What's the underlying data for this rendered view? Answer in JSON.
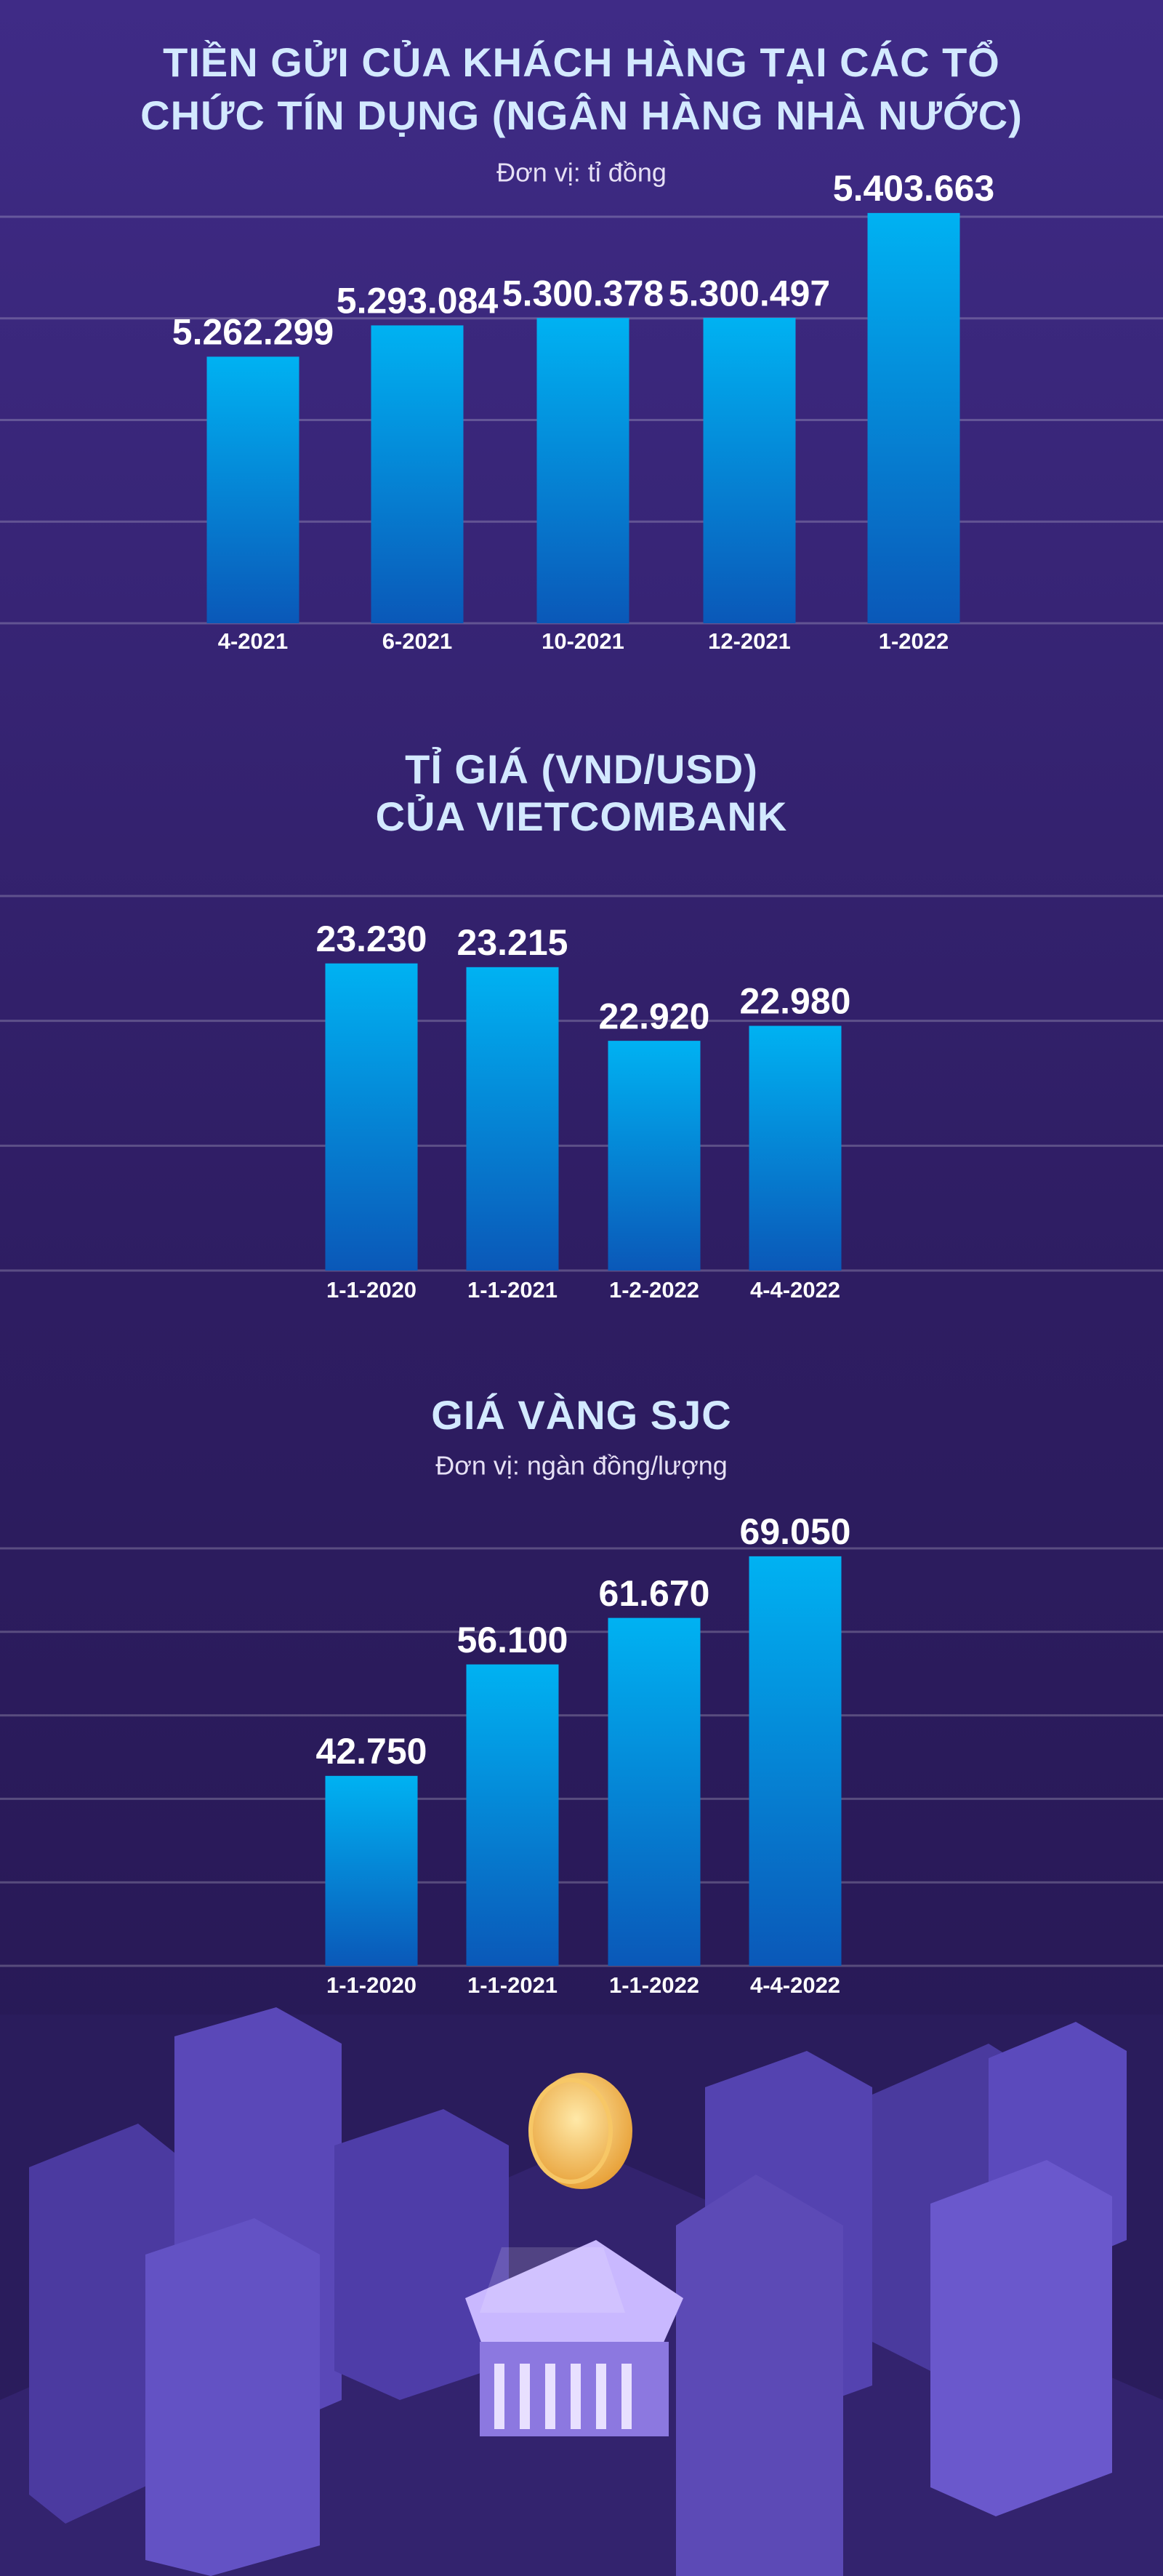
{
  "chart_data": [
    {
      "type": "bar",
      "title": [
        "TIỀN GỬI CỦA KHÁCH HÀNG TẠI CÁC TỔ",
        "CHỨC TÍN DỤNG (NGÂN HÀNG NHÀ NƯỚC)"
      ],
      "subtitle": "Đơn vị: tỉ đồng",
      "categories": [
        "4-2021",
        "6-2021",
        "10-2021",
        "12-2021",
        "1-2022"
      ],
      "values": [
        5262299,
        5293084,
        5300378,
        5300497,
        5403663
      ],
      "value_labels": [
        "5.262.299",
        "5.293.084",
        "5.300.378",
        "5.300.497",
        "5.403.663"
      ],
      "ylim": [
        5000000,
        5400000
      ],
      "yticks": [
        5000000,
        5100000,
        5200000,
        5300000,
        5400000
      ],
      "grid": true,
      "color": "#00aff0"
    },
    {
      "type": "bar",
      "title": [
        "TỈ GIÁ (VND/USD)",
        "CỦA VIETCOMBANK"
      ],
      "categories": [
        "1-1-2020",
        "1-1-2021",
        "1-2-2022",
        "4-4-2022"
      ],
      "values": [
        23230,
        23215,
        22920,
        22980
      ],
      "value_labels": [
        "23.230",
        "23.215",
        "22.920",
        "22.980"
      ],
      "ylim": [
        22000,
        23500
      ],
      "yticks": [
        22000,
        22500,
        23000,
        23500
      ],
      "grid": true,
      "color": "#00aff0"
    },
    {
      "type": "bar",
      "title": [
        "GIÁ VÀNG SJC"
      ],
      "subtitle": "Đơn vị: ngàn đồng/lượng",
      "categories": [
        "1-1-2020",
        "1-1-2021",
        "1-1-2022",
        "4-4-2022"
      ],
      "values": [
        42750,
        56100,
        61670,
        69050
      ],
      "value_labels": [
        "42.750",
        "56.100",
        "61.670",
        "69.050"
      ],
      "ylim": [
        20000,
        70000
      ],
      "yticks": [
        20000,
        30000,
        40000,
        50000,
        60000,
        70000
      ],
      "grid": true,
      "color": "#00aff0"
    }
  ]
}
